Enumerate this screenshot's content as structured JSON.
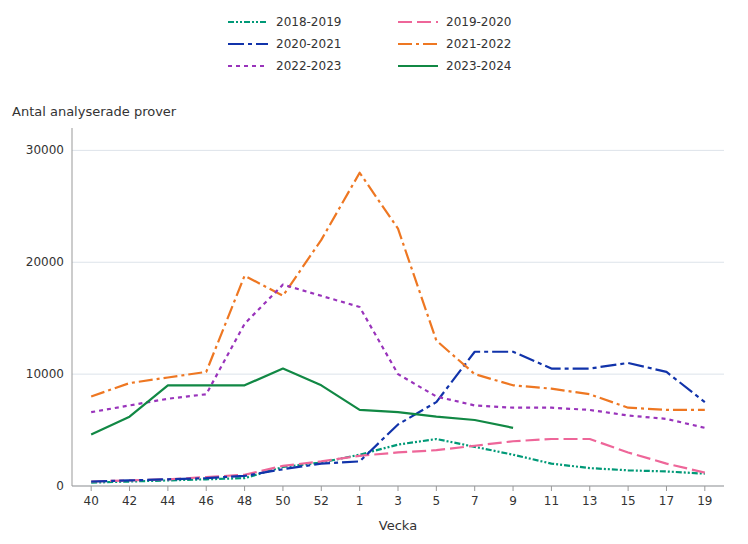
{
  "chart_data": {
    "type": "line",
    "x_label": "Vecka",
    "y_label": "Antal analyserade prover",
    "categories": [
      "40",
      "42",
      "44",
      "46",
      "48",
      "50",
      "52",
      "1",
      "3",
      "5",
      "7",
      "9",
      "11",
      "13",
      "15",
      "17",
      "19"
    ],
    "series": [
      {
        "name": "2018-2019",
        "color": "#009977",
        "line_style": "dashdotdot",
        "values": [
          300,
          400,
          500,
          600,
          700,
          1700,
          2100,
          2800,
          3700,
          4200,
          3500,
          2800,
          2000,
          1600,
          1400,
          1300,
          1100
        ]
      },
      {
        "name": "2019-2020",
        "color": "#EE6699",
        "line_style": "longdash",
        "values": [
          400,
          500,
          600,
          800,
          1000,
          1800,
          2200,
          2700,
          3000,
          3200,
          3600,
          4000,
          4200,
          4200,
          3000,
          2000,
          1200
        ]
      },
      {
        "name": "2020-2021",
        "color": "#1133AA",
        "line_style": "longdashdash",
        "values": [
          400,
          500,
          600,
          700,
          900,
          1500,
          2000,
          2200,
          5500,
          7500,
          12000,
          12000,
          10500,
          10500,
          11000,
          10200,
          7500
        ]
      },
      {
        "name": "2021-2022",
        "color": "#EE7722",
        "line_style": "dashdot",
        "values": [
          8000,
          9200,
          9700,
          10200,
          18800,
          17000,
          22000,
          28000,
          23000,
          13000,
          10000,
          9000,
          8700,
          8200,
          7000,
          6800,
          6800
        ]
      },
      {
        "name": "2022-2023",
        "color": "#9933BB",
        "line_style": "dotted",
        "values": [
          6600,
          7200,
          7800,
          8200,
          14500,
          18000,
          17000,
          16000,
          10000,
          8000,
          7200,
          7000,
          7000,
          6800,
          6300,
          6000,
          5200
        ]
      },
      {
        "name": "2023-2024",
        "color": "#118844",
        "line_style": "solid",
        "values": [
          4600,
          6200,
          9000,
          9000,
          9000,
          10500,
          9000,
          6800,
          6600,
          6200,
          5900,
          5200,
          null,
          null,
          null,
          null,
          null
        ]
      }
    ],
    "ylim": [
      0,
      32000
    ],
    "yticks": [
      0,
      10000,
      20000,
      30000
    ],
    "grid": true,
    "legend": "top"
  }
}
